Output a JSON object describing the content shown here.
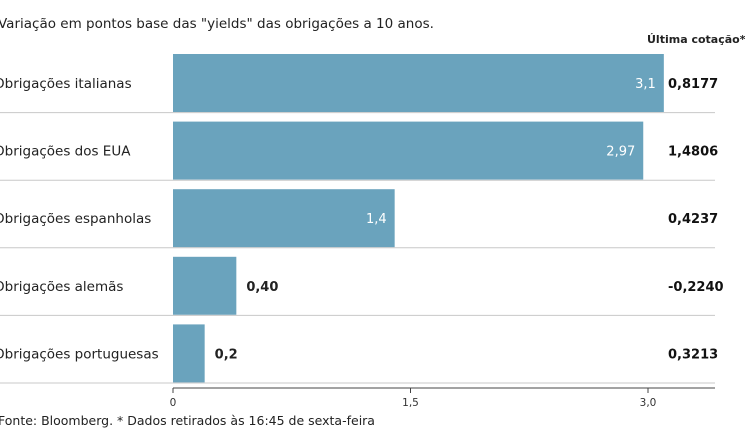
{
  "subtitle": "Variação em pontos base das \"yields\" das obrigações a 10 anos.",
  "last_quote_header": "Última cotação*",
  "source": "Fonte: Bloomberg.  * Dados retirados às 16:45 de sexta-feira",
  "colors": {
    "bar": "#6aa3bd",
    "separator": "#c8c8c8",
    "axis": "#444444"
  },
  "chart_data": {
    "type": "bar",
    "orientation": "horizontal",
    "categories": [
      "Obrigações italianas",
      "Obrigações dos EUA",
      "Obrigações espanholas",
      "Obrigações alemãs",
      "Obrigações portuguesas"
    ],
    "values": [
      3.1,
      2.97,
      1.4,
      0.4,
      0.2
    ],
    "value_labels": [
      "3,1",
      "2,97",
      "1,4",
      "0,40",
      "0,2"
    ],
    "last_quote": [
      "0,8177",
      "1,4806",
      "0,4237",
      "-0,2240",
      "0,3213"
    ],
    "xlim": [
      0,
      3.45
    ],
    "xticks": [
      0,
      1.5,
      3.0
    ],
    "xtick_labels": [
      "0",
      "1,5",
      "3,0"
    ],
    "title": "Variação em pontos base das \"yields\" das obrigações a 10 anos.",
    "xlabel": "",
    "ylabel": "",
    "grid": false
  }
}
